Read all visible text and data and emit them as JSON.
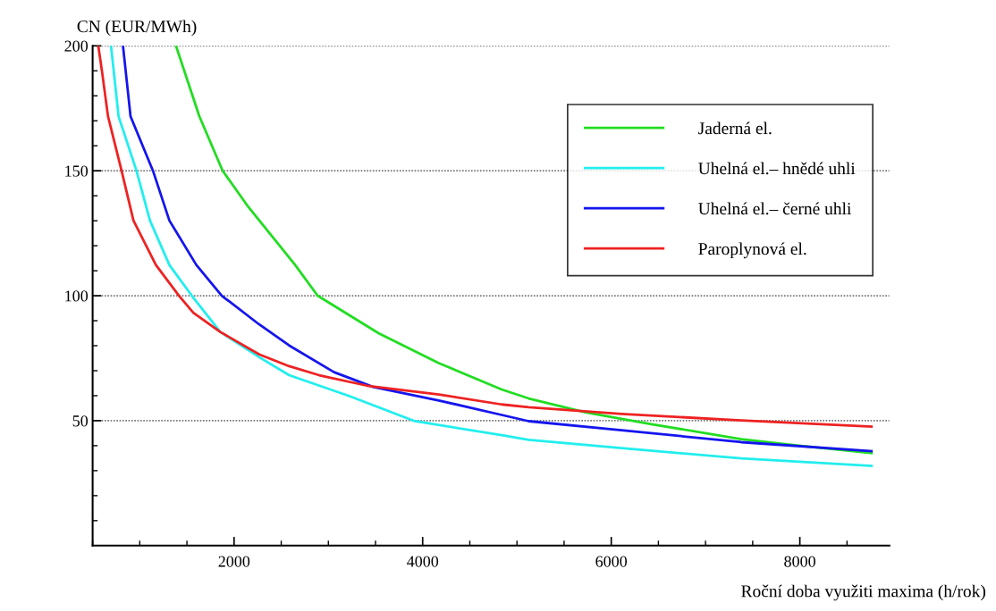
{
  "chart_data": {
    "type": "line",
    "xlabel": "Roční doba využiti maxima (h/rok)",
    "ylabel": "CN (EUR/MWh)",
    "xlim": [
      500,
      8950
    ],
    "xticks": [
      {
        "value": 500,
        "label": null
      },
      {
        "value": 1000,
        "label": null
      },
      {
        "value": 1500,
        "label": null
      },
      2000,
      {
        "value": 2500,
        "label": null
      },
      {
        "value": 3000,
        "label": null
      },
      {
        "value": 3500,
        "label": null
      },
      4000,
      {
        "value": 4500,
        "label": null
      },
      {
        "value": 5000,
        "label": null
      },
      {
        "value": 5500,
        "label": null
      },
      6000,
      {
        "value": 6500,
        "label": null
      },
      {
        "value": 7000,
        "label": null
      },
      {
        "value": 7500,
        "label": null
      },
      8000,
      {
        "value": 8500,
        "label": null
      }
    ],
    "ylim": [
      0,
      200
    ],
    "yticks": [
      {
        "value": 10,
        "label": null
      },
      {
        "value": 20,
        "label": null
      },
      {
        "value": 30,
        "label": null
      },
      {
        "value": 40,
        "label": null
      },
      50,
      {
        "value": 60,
        "label": null
      },
      {
        "value": 70,
        "label": null
      },
      {
        "value": 80,
        "label": null
      },
      {
        "value": 90,
        "label": null
      },
      100,
      {
        "value": 110,
        "label": null
      },
      {
        "value": 120,
        "label": null
      },
      {
        "value": 130,
        "label": null
      },
      {
        "value": 140,
        "label": null
      },
      150,
      {
        "value": 160,
        "label": null
      },
      {
        "value": 170,
        "label": null
      },
      {
        "value": 180,
        "label": null
      },
      {
        "value": 190,
        "label": null
      },
      200
    ],
    "grid": "y",
    "legend": "top right",
    "line_style": "solid",
    "marker": "none",
    "series": [
      {
        "name": "Jaderná el.",
        "color": "#22dd22",
        "x": [
          1384,
          1632,
          1879,
          2140,
          2394,
          2648,
          2886,
          3536,
          4171,
          4838,
          5124,
          5727,
          6425,
          7378,
          8013,
          8760
        ],
        "values": [
          200,
          171.8,
          150,
          136.1,
          124.2,
          112.3,
          100,
          84.9,
          73,
          62.5,
          58.9,
          53.3,
          48.6,
          42.6,
          39.9,
          37
        ]
      },
      {
        "name": "Uhelná el.– hnědé uhli",
        "color": "#22eeee",
        "x": [
          695,
          775,
          965,
          1108,
          1314,
          1552,
          1854,
          2267,
          2584,
          3219,
          3917,
          4838,
          5124,
          6108,
          7378,
          8760
        ],
        "values": [
          200,
          171.8,
          150,
          130.1,
          112.3,
          100,
          85.5,
          75.4,
          68.2,
          59.9,
          49.8,
          44.2,
          42.3,
          39,
          34.9,
          31.9
        ]
      },
      {
        "name": "Uhelná el.– černé uhli",
        "color": "#1515ee",
        "x": [
          822,
          902,
          1140,
          1314,
          1600,
          1870,
          2267,
          2584,
          3060,
          3473,
          4171,
          4838,
          5124,
          6108,
          7378,
          8760
        ],
        "values": [
          200,
          171.8,
          150,
          130.1,
          112.3,
          100,
          88.5,
          80.1,
          69.4,
          63.5,
          58.1,
          52.3,
          49.8,
          46.2,
          41.4,
          37.8
        ]
      },
      {
        "name": "Paroplynová el.",
        "color": "#ee2222",
        "x": [
          560,
          600,
          663,
          807,
          933,
          1171,
          1416,
          1568,
          1854,
          2267,
          2584,
          2902,
          3410,
          4171,
          4838,
          5124,
          6108,
          7378,
          8760
        ],
        "values": [
          200,
          189.6,
          171.8,
          150,
          130.1,
          112.3,
          100,
          93.2,
          85.5,
          76.5,
          71.8,
          68.2,
          64,
          60.5,
          56.5,
          55.4,
          52.7,
          50.1,
          47.6
        ]
      }
    ]
  }
}
